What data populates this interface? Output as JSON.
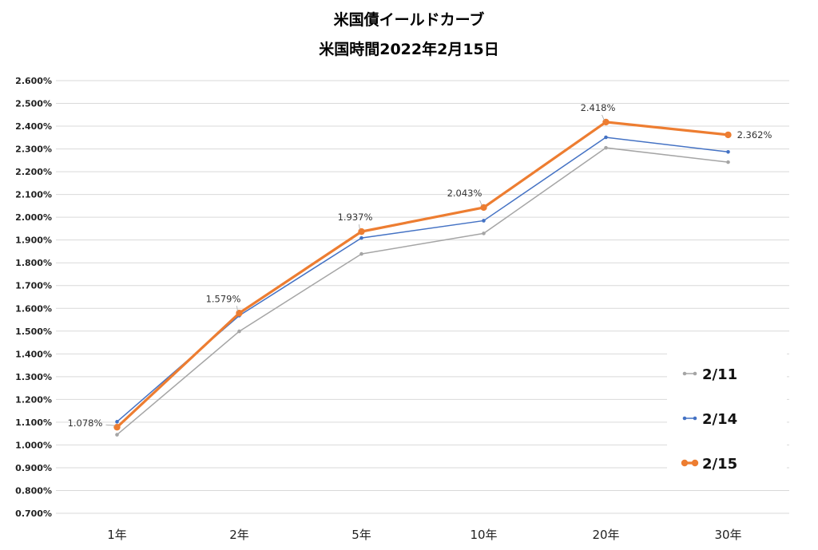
{
  "chart_data": {
    "type": "line",
    "title": "米国債イールドカーブ",
    "subtitle": "米国時間2022年2月15日",
    "categories": [
      "1年",
      "2年",
      "5年",
      "10年",
      "20年",
      "30年"
    ],
    "y_ticks": [
      "0.700%",
      "0.800%",
      "0.900%",
      "1.000%",
      "1.100%",
      "1.200%",
      "1.300%",
      "1.400%",
      "1.500%",
      "1.600%",
      "1.700%",
      "1.800%",
      "1.900%",
      "2.000%",
      "2.100%",
      "2.200%",
      "2.300%",
      "2.400%",
      "2.500%",
      "2.600%"
    ],
    "ylim": [
      0.7,
      2.6
    ],
    "grid": true,
    "legend_position": "right",
    "series": [
      {
        "name": "2/11",
        "color": "#a5a5a5",
        "values": [
          1.045,
          1.499,
          1.839,
          1.929,
          2.305,
          2.242
        ],
        "labels": []
      },
      {
        "name": "2/14",
        "color": "#4472c4",
        "values": [
          1.102,
          1.568,
          1.909,
          1.985,
          2.351,
          2.287
        ],
        "labels": []
      },
      {
        "name": "2/15",
        "color": "#ed7d31",
        "values": [
          1.078,
          1.579,
          1.937,
          2.043,
          2.418,
          2.362
        ],
        "labels": [
          "1.078%",
          "1.579%",
          "1.937%",
          "2.043%",
          "2.418%",
          "2.362%"
        ]
      }
    ]
  }
}
